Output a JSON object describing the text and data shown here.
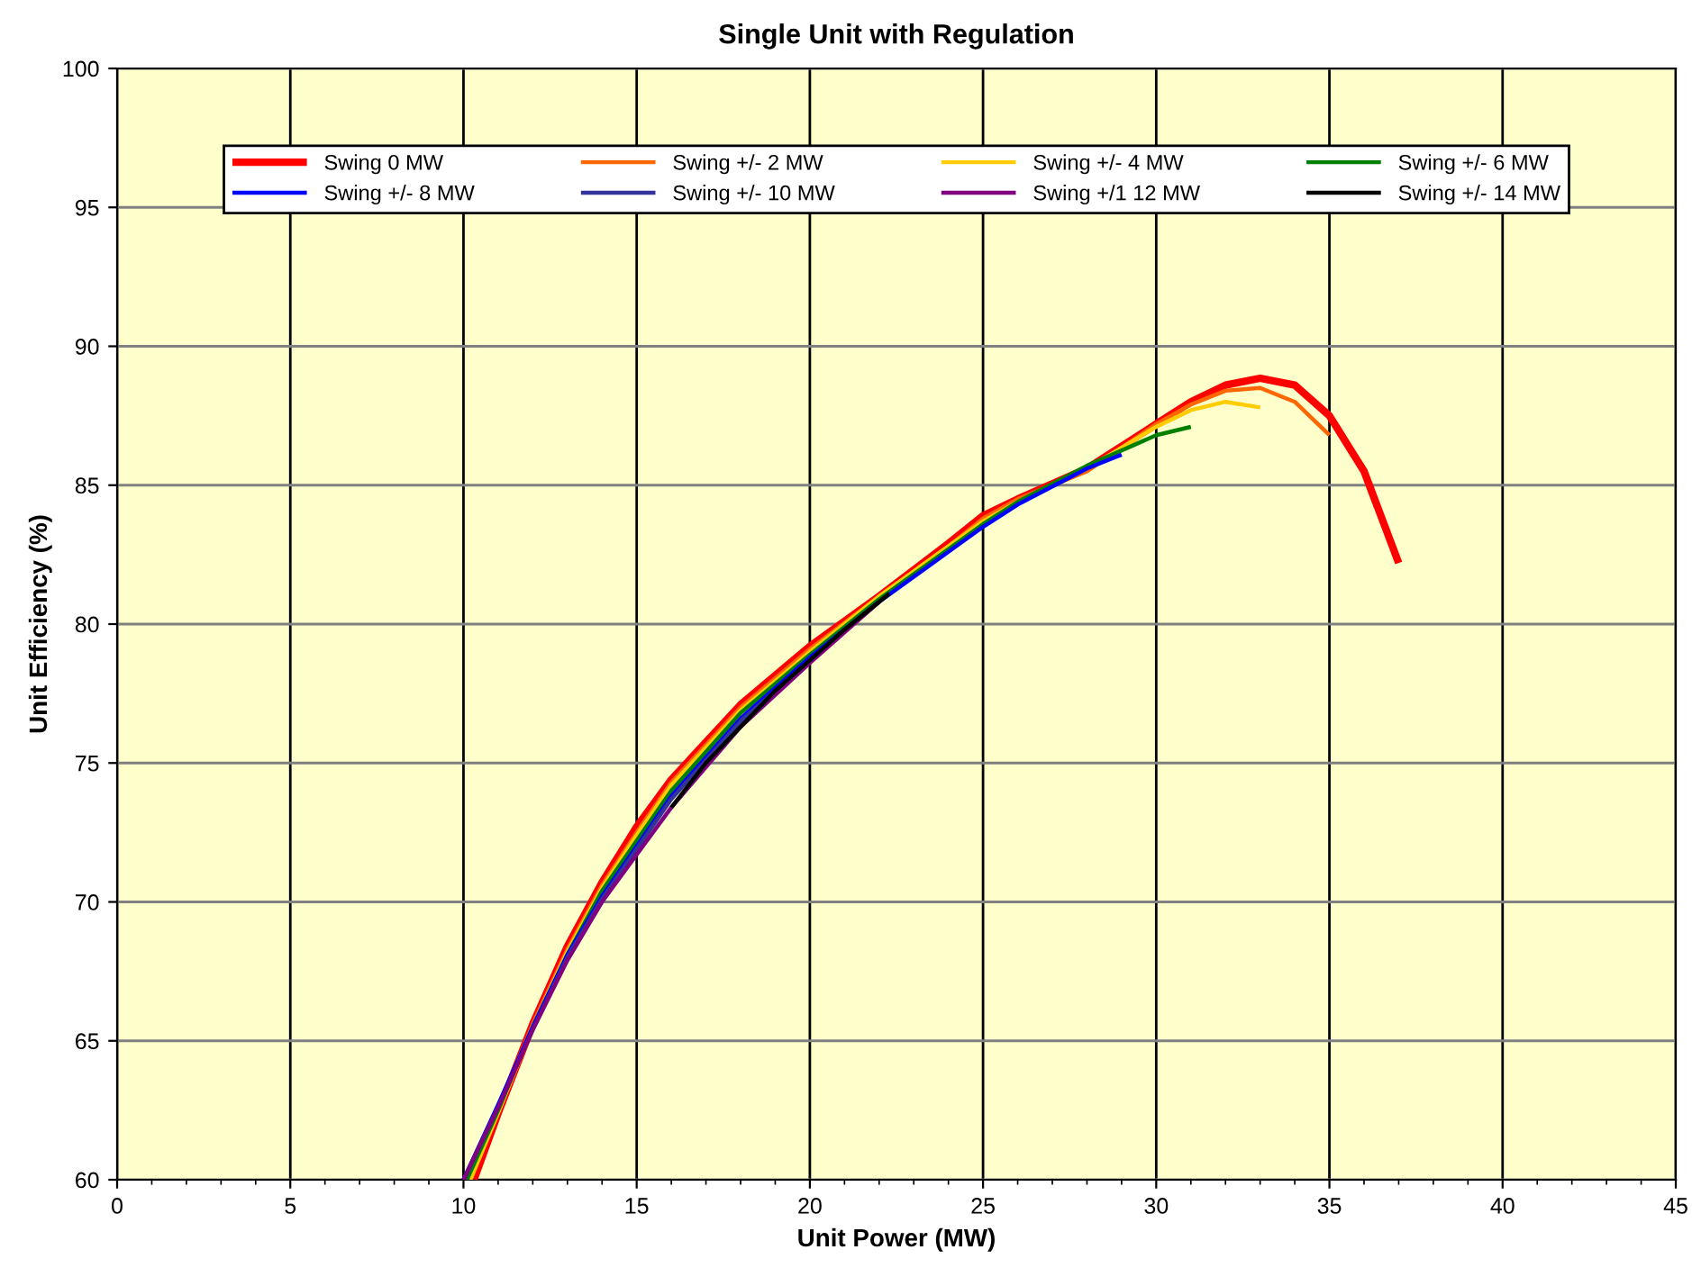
{
  "chart_data": {
    "type": "line",
    "title": "Single Unit with Regulation",
    "xlabel": "Unit Power (MW)",
    "ylabel": "Unit Efficiency (%)",
    "xlim": [
      0,
      45
    ],
    "ylim": [
      60,
      100
    ],
    "xticks": [
      0,
      5,
      10,
      15,
      20,
      25,
      30,
      35,
      40,
      45
    ],
    "yticks": [
      60,
      65,
      70,
      75,
      80,
      85,
      90,
      95,
      100
    ],
    "grid": true,
    "legend": "top",
    "marker": "none",
    "line_style": "solid",
    "series": [
      {
        "name": "Swing 0 MW",
        "color": "#ff0000",
        "x": [
          10.3,
          11,
          12,
          13,
          14,
          15,
          16,
          18,
          20,
          22,
          24,
          25,
          26,
          28,
          30,
          31,
          32,
          33,
          34,
          35,
          36,
          37
        ],
        "values": [
          60,
          62.4,
          65.6,
          68.4,
          70.7,
          72.7,
          74.4,
          77.1,
          79.2,
          81.0,
          82.9,
          83.9,
          84.5,
          85.6,
          87.2,
          88.0,
          88.6,
          88.85,
          88.6,
          87.5,
          85.5,
          82.2
        ]
      },
      {
        "name": "Swing +/- 2 MW",
        "color": "#ff6600",
        "x": [
          10.2,
          11,
          12,
          13,
          14,
          15,
          16,
          18,
          20,
          22,
          24,
          25,
          26,
          28,
          30,
          31,
          32,
          33,
          34,
          35
        ],
        "values": [
          60,
          62.5,
          65.6,
          68.3,
          70.6,
          72.5,
          74.3,
          77.0,
          79.1,
          81.0,
          82.8,
          83.8,
          84.5,
          85.5,
          87.2,
          87.9,
          88.4,
          88.5,
          88.0,
          86.8
        ]
      },
      {
        "name": "Swing +/- 4 MW",
        "color": "#ffcc00",
        "x": [
          10.2,
          11,
          12,
          13,
          14,
          15,
          16,
          18,
          20,
          22,
          24,
          25,
          26,
          28,
          30,
          31,
          32,
          33
        ],
        "values": [
          60,
          62.4,
          65.5,
          68.2,
          70.5,
          72.4,
          74.2,
          76.9,
          79.0,
          81.0,
          82.8,
          83.7,
          84.4,
          85.6,
          87.1,
          87.7,
          88.0,
          87.8
        ]
      },
      {
        "name": "Swing +/- 6 MW",
        "color": "#008000",
        "x": [
          10.1,
          11,
          12,
          13,
          14,
          15,
          16,
          18,
          20,
          22,
          24,
          25,
          26,
          28,
          30,
          31
        ],
        "values": [
          60,
          62.5,
          65.5,
          68.1,
          70.4,
          72.2,
          74.0,
          76.8,
          78.9,
          80.9,
          82.7,
          83.6,
          84.4,
          85.7,
          86.8,
          87.1
        ]
      },
      {
        "name": "Swing +/- 8 MW",
        "color": "#0000ff",
        "x": [
          10,
          11,
          12,
          13,
          14,
          15,
          16,
          18,
          20,
          22,
          24,
          25,
          26,
          28,
          29
        ],
        "values": [
          60,
          62.7,
          65.5,
          68.1,
          70.2,
          72.0,
          73.8,
          76.6,
          78.8,
          80.8,
          82.6,
          83.5,
          84.3,
          85.6,
          86.1
        ]
      },
      {
        "name": "Swing +/- 10 MW",
        "color": "#333399",
        "x": [
          10,
          11,
          12,
          13,
          14,
          15,
          16,
          18,
          20,
          22
        ],
        "values": [
          60,
          62.6,
          65.4,
          68.0,
          70.1,
          71.9,
          73.7,
          76.5,
          78.7,
          80.8
        ]
      },
      {
        "name": "Swing +/1 12 MW",
        "color": "#800080",
        "x": [
          10,
          11,
          12,
          13,
          14,
          15,
          16,
          18,
          20,
          22
        ],
        "values": [
          60,
          62.6,
          65.4,
          67.9,
          70.0,
          71.7,
          73.4,
          76.3,
          78.6,
          80.8
        ]
      },
      {
        "name": "Swing +/- 14 MW",
        "color": "#000000",
        "x": [
          16,
          17,
          18,
          19,
          20,
          21,
          22.3
        ],
        "values": [
          73.4,
          75.0,
          76.3,
          77.6,
          78.7,
          79.8,
          81.1
        ]
      }
    ]
  }
}
